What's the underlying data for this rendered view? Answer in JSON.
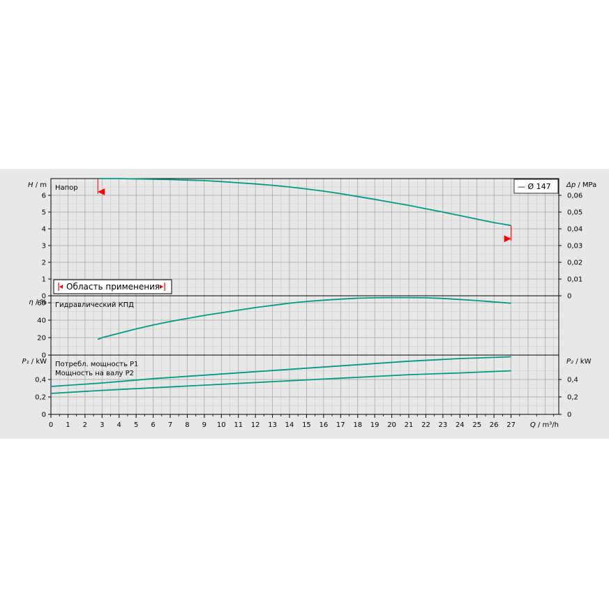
{
  "colors": {
    "background": "#e8e8e8",
    "curve": "#009b82",
    "grid": "#a0a0a0",
    "marker": "#ff0000"
  },
  "chart_data": [
    {
      "type": "line",
      "title": "Напор",
      "ylabel_var": "H",
      "ylabel_unit": "/ m",
      "y2label_var": "Δp",
      "y2label_unit": "/ MPa",
      "ylim": [
        0,
        7.0
      ],
      "yticks": [
        "0",
        "1",
        "2",
        "3",
        "4",
        "5",
        "6"
      ],
      "y2lim": [
        0,
        0.07
      ],
      "y2ticks": [
        "0",
        "0,01",
        "0,02",
        "0,03",
        "0,04",
        "0,05",
        "0,06"
      ],
      "legend": "— Ø 147",
      "range_label": "Область применения",
      "series": [
        {
          "name": "Ø 147",
          "x": [
            2.75,
            3,
            4,
            5,
            6,
            7,
            8,
            9,
            10,
            11,
            12,
            13,
            14,
            15,
            16,
            17,
            18,
            19,
            20,
            21,
            22,
            23,
            24,
            25,
            26,
            27
          ],
          "y": [
            7.0,
            7.0,
            7.0,
            6.98,
            6.96,
            6.94,
            6.91,
            6.88,
            6.82,
            6.75,
            6.68,
            6.6,
            6.5,
            6.38,
            6.25,
            6.1,
            5.93,
            5.76,
            5.58,
            5.4,
            5.2,
            5.0,
            4.79,
            4.58,
            4.37,
            4.2
          ]
        }
      ],
      "range": {
        "x_min": 2.75,
        "x_max": 27
      }
    },
    {
      "type": "line",
      "title": "Гидравлический КПД",
      "ylabel_var": "η",
      "ylabel_unit": "/ %",
      "ylim": [
        0,
        68
      ],
      "yticks": [
        "0",
        "20",
        "40",
        "60"
      ],
      "series": [
        {
          "x": [
            2.75,
            3,
            4,
            5,
            6,
            7,
            8,
            9,
            10,
            11,
            12,
            13,
            14,
            15,
            16,
            17,
            18,
            19,
            20,
            21,
            22,
            23,
            24,
            25,
            26,
            27
          ],
          "y": [
            18,
            20,
            25,
            30,
            34.5,
            38.5,
            42,
            45.5,
            48.5,
            51.5,
            54.5,
            57,
            59.5,
            61.5,
            63,
            64.2,
            65.2,
            65.7,
            65.9,
            65.9,
            65.7,
            65,
            63.8,
            62.5,
            61,
            59.5
          ]
        }
      ]
    },
    {
      "type": "line",
      "title_lines": [
        "Потребл. мощность P1",
        "Мощность на валу P2"
      ],
      "ylabel_var": "P₁",
      "ylabel_unit": "/ kW",
      "y2label_var": "P₂",
      "y2label_unit": "/ kW",
      "ylim": [
        0,
        0.68
      ],
      "yticks": [
        "0",
        "0,2",
        "0,4"
      ],
      "y2lim": [
        0,
        0.68
      ],
      "y2ticks": [
        "0",
        "0,2",
        "0,4"
      ],
      "series": [
        {
          "name": "P1",
          "x": [
            0,
            3,
            6,
            9,
            12,
            15,
            18,
            21,
            24,
            27
          ],
          "y": [
            0.32,
            0.36,
            0.41,
            0.45,
            0.49,
            0.53,
            0.57,
            0.61,
            0.64,
            0.66
          ]
        },
        {
          "name": "P2",
          "x": [
            0,
            3,
            6,
            9,
            12,
            15,
            18,
            21,
            24,
            27
          ],
          "y": [
            0.24,
            0.275,
            0.305,
            0.335,
            0.365,
            0.395,
            0.425,
            0.455,
            0.475,
            0.5
          ]
        }
      ]
    }
  ],
  "xaxis": {
    "var": "Q",
    "unit": "/ m³/h",
    "xlim": [
      0,
      29.8
    ],
    "ticks": [
      "0",
      "1",
      "2",
      "3",
      "4",
      "5",
      "6",
      "7",
      "8",
      "9",
      "10",
      "11",
      "12",
      "13",
      "14",
      "15",
      "16",
      "17",
      "18",
      "19",
      "20",
      "21",
      "22",
      "23",
      "24",
      "25",
      "26",
      "27"
    ]
  }
}
